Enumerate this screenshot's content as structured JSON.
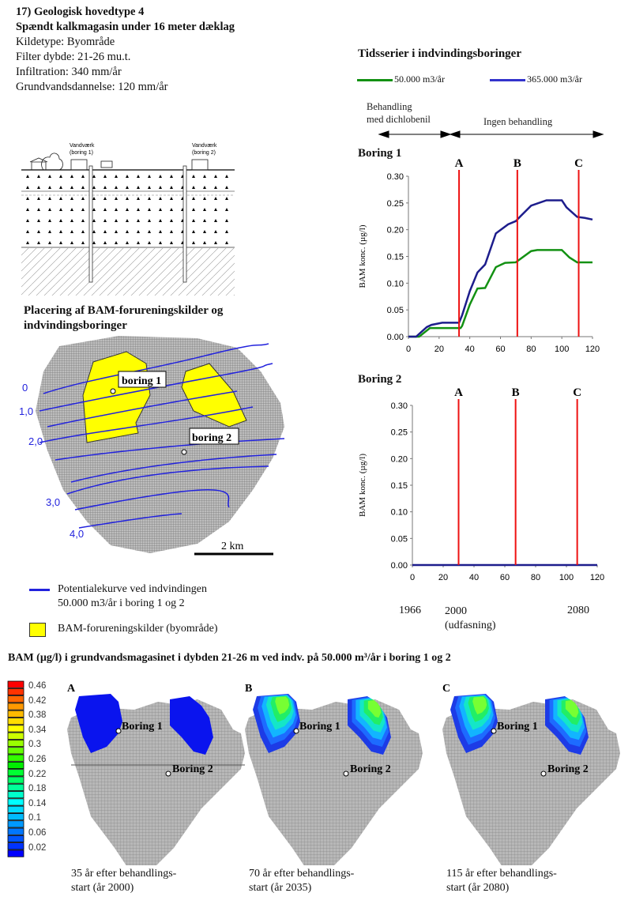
{
  "info": {
    "title": "17) Geologisk hovedtype 4",
    "subtitle": "Spændt kalkmagasin under 16 meter dæklag",
    "lines": [
      "Kildetype: Byområde",
      "Filter dybde: 21-26 mu.t.",
      "Infiltration: 340 mm/år",
      "Grundvandsdannelse: 120 mm/år"
    ]
  },
  "cross_section": {
    "label_1": "Vandværk",
    "label_1b": "(boring 1)",
    "label_2": "Vandværk",
    "label_2b": "(boring 2)"
  },
  "map": {
    "heading_1": "Placering af BAM-forureningskilder og",
    "heading_2": "indvindingsboringer",
    "contours": [
      "0",
      "1,0",
      "2,0",
      "3,0",
      "4,0"
    ],
    "boring_1": "boring 1",
    "boring_2": "boring 2",
    "scale": "2 km",
    "legend_line_1": "Potentialekurve ved indvindingen",
    "legend_line_2": "50.000 m3/år i boring 1 og 2",
    "legend_source": "BAM-forureningskilder (byområde)",
    "contour_color": "#2222dd",
    "source_color": "#ffff00"
  },
  "timeseries": {
    "title": "Tidsserier i indvindingsboringer",
    "legend": [
      {
        "label": "50.000 m3/år",
        "color": "#139113"
      },
      {
        "label": "365.000 m3/år",
        "color": "#1d1d8c"
      }
    ],
    "phase_1a": "Behandling",
    "phase_1b": "med dichlobenil",
    "phase_2": "Ingen behandling",
    "year_1966": "1966",
    "year_2000": "2000",
    "year_2000_note": "(udfasning)",
    "year_2080": "2080"
  },
  "chart_data": [
    {
      "type": "line",
      "title": "Boring 1",
      "ylabel": "BAM konc. (µg/l)",
      "xlim": [
        0,
        120
      ],
      "ylim": [
        0,
        0.3
      ],
      "xticks": [
        "0",
        "20",
        "40",
        "60",
        "80",
        "100",
        "120"
      ],
      "yticks": [
        "0.00",
        "0.05",
        "0.10",
        "0.15",
        "0.20",
        "0.25",
        "0.30"
      ],
      "markers": [
        {
          "label": "A",
          "x": 33
        },
        {
          "label": "B",
          "x": 71
        },
        {
          "label": "C",
          "x": 111
        }
      ],
      "series": [
        {
          "name": "50.000 m3/år",
          "color": "#139113",
          "x": [
            0,
            7,
            14,
            20,
            34,
            35,
            40,
            45,
            50,
            57,
            63,
            70,
            80,
            84,
            100,
            105,
            110,
            120
          ],
          "y": [
            0,
            0,
            0.016,
            0.016,
            0.016,
            0.02,
            0.06,
            0.09,
            0.091,
            0.13,
            0.138,
            0.139,
            0.16,
            0.162,
            0.162,
            0.148,
            0.139,
            0.139
          ]
        },
        {
          "name": "365.000 m3/år",
          "color": "#1d1d8c",
          "x": [
            0,
            5,
            12,
            15,
            22,
            33,
            35,
            40,
            45,
            50,
            57,
            65,
            70,
            73,
            80,
            90,
            100,
            103,
            110,
            115,
            120
          ],
          "y": [
            0,
            0,
            0.018,
            0.022,
            0.026,
            0.026,
            0.04,
            0.085,
            0.12,
            0.135,
            0.193,
            0.21,
            0.216,
            0.225,
            0.245,
            0.255,
            0.255,
            0.242,
            0.224,
            0.222,
            0.219
          ]
        }
      ]
    },
    {
      "type": "line",
      "title": "Boring 2",
      "ylabel": "BAM konc. (µg/l)",
      "xlim": [
        0,
        120
      ],
      "ylim": [
        0,
        0.3
      ],
      "xticks": [
        "0",
        "20",
        "40",
        "60",
        "80",
        "100",
        "120"
      ],
      "yticks": [
        "0.00",
        "0.05",
        "0.10",
        "0.15",
        "0.20",
        "0.25",
        "0.30"
      ],
      "markers": [
        {
          "label": "A",
          "x": 30
        },
        {
          "label": "B",
          "x": 67
        },
        {
          "label": "C",
          "x": 107
        }
      ],
      "series": [
        {
          "name": "365.000 m3/år",
          "color": "#1d1d8c",
          "x": [
            0,
            120
          ],
          "y": [
            0,
            0
          ]
        }
      ]
    }
  ],
  "bottom": {
    "title": "BAM (µg/l) i grundvandsmagasinet i dybden 21-26 m ved indv. på 50.000 m³/år i boring 1 og 2",
    "colorbar_labels": [
      "0.46",
      "0.42",
      "0.38",
      "0.34",
      "0.3",
      "0.26",
      "0.22",
      "0.18",
      "0.14",
      "0.1",
      "0.06",
      "0.02"
    ],
    "panels": [
      {
        "letter": "A",
        "boring_1": "Boring 1",
        "boring_2": "Boring 2",
        "caption_1": "35 år efter behandlings-",
        "caption_2": "start (år 2000)"
      },
      {
        "letter": "B",
        "boring_1": "Boring 1",
        "boring_2": "Boring 2",
        "caption_1": "70 år efter behandlings-",
        "caption_2": "start (år 2035)"
      },
      {
        "letter": "C",
        "boring_1": "Boring 1",
        "boring_2": "Boring 2",
        "caption_1": "115 år efter behandlings-",
        "caption_2": "start (år 2080)"
      }
    ]
  }
}
